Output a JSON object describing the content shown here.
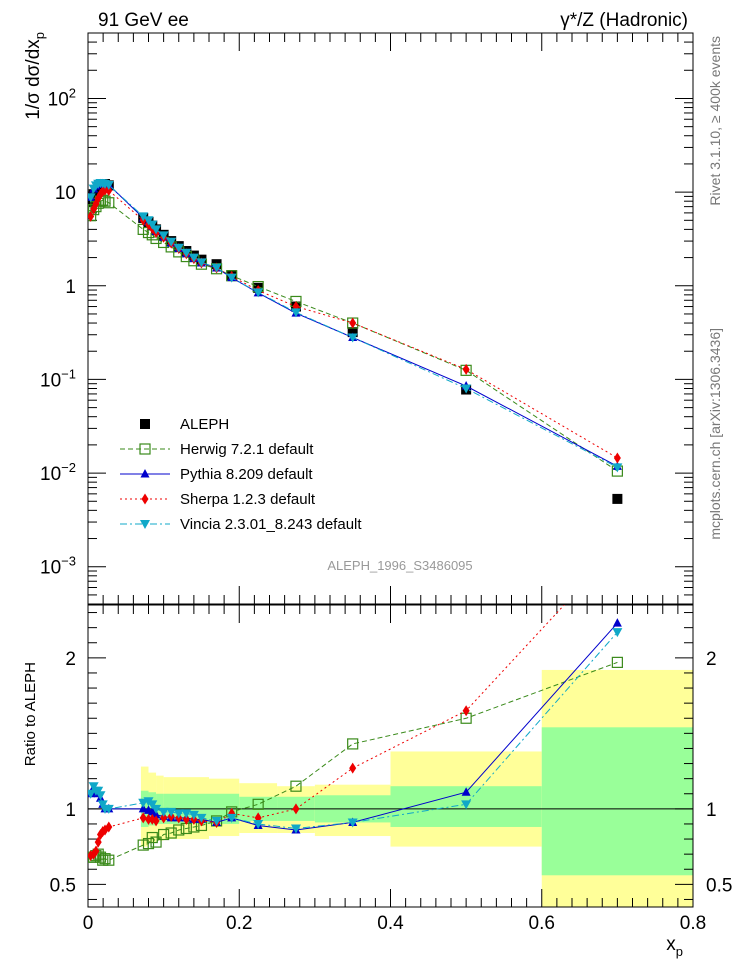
{
  "header": {
    "left": "91 GeV ee",
    "right": "γ*/Z (Hadronic)"
  },
  "side_labels": {
    "right_top": "Rivet 3.1.10, ≥ 400k events",
    "right_bottom": "mcplots.cern.ch [arXiv:1306.3436]"
  },
  "watermark": "ALEPH_1996_S3486095",
  "colors": {
    "data": "#000000",
    "herwig": "#3a8a1a",
    "pythia": "#0000cc",
    "sherpa": "#ee0000",
    "vincia": "#10a8c8",
    "band_outer": "#ffff99",
    "band_inner": "#99ff99"
  },
  "chart_data": [
    {
      "type": "scatter",
      "panel": "main",
      "ylabel": "1/σ dσ/dx",
      "ylabel_sub": "p",
      "yscale": "log",
      "xlim": [
        0,
        0.8
      ],
      "ylim": [
        0.0004,
        500
      ],
      "y_ticks": [
        {
          "v": 0.001,
          "b": "10",
          "e": "−3"
        },
        {
          "v": 0.01,
          "b": "10",
          "e": "−2"
        },
        {
          "v": 0.1,
          "b": "10",
          "e": "−1"
        },
        {
          "v": 1,
          "b": "1",
          "e": ""
        },
        {
          "v": 10,
          "b": "10",
          "e": ""
        },
        {
          "v": 100,
          "b": "10",
          "e": "2"
        }
      ],
      "legend": [
        {
          "key": "data",
          "label": "ALEPH"
        },
        {
          "key": "herwig",
          "label": "Herwig 7.2.1 default"
        },
        {
          "key": "pythia",
          "label": "Pythia 8.209 default"
        },
        {
          "key": "sherpa",
          "label": "Sherpa 1.2.3 default"
        },
        {
          "key": "vincia",
          "label": "Vincia 2.3.01_8.243 default"
        }
      ],
      "x": [
        0.0035,
        0.0075,
        0.0105,
        0.0135,
        0.0165,
        0.0195,
        0.0225,
        0.0275,
        0.073,
        0.08,
        0.085,
        0.09,
        0.1,
        0.11,
        0.12,
        0.13,
        0.14,
        0.15,
        0.17,
        0.19,
        0.225,
        0.275,
        0.35,
        0.5,
        0.7
      ],
      "series": [
        {
          "key": "data",
          "name": "ALEPH",
          "values": [
            8.0,
            9.5,
            10.5,
            11.0,
            11.5,
            12.0,
            12.2,
            11.8,
            5.3,
            4.8,
            4.4,
            4.0,
            3.5,
            3.0,
            2.65,
            2.35,
            2.1,
            1.9,
            1.7,
            1.3,
            0.95,
            0.6,
            0.32,
            0.078,
            0.0053
          ]
        },
        {
          "key": "herwig",
          "name": "Herwig 7.2.1 default",
          "values": [
            5.6,
            6.5,
            7.0,
            7.6,
            8.0,
            8.2,
            8.0,
            7.7,
            4.0,
            3.7,
            3.5,
            3.2,
            2.9,
            2.6,
            2.3,
            2.05,
            1.85,
            1.7,
            1.52,
            1.28,
            0.98,
            0.68,
            0.4,
            0.125,
            0.0105
          ]
        },
        {
          "key": "pythia",
          "name": "Pythia 8.209 default",
          "values": [
            8.8,
            10.8,
            11.6,
            12.1,
            12.3,
            12.3,
            12.2,
            11.9,
            5.3,
            4.8,
            4.3,
            3.8,
            3.3,
            2.85,
            2.5,
            2.2,
            1.95,
            1.75,
            1.55,
            1.22,
            0.84,
            0.51,
            0.28,
            0.085,
            0.0118
          ]
        },
        {
          "key": "sherpa",
          "name": "Sherpa 1.2.3 default",
          "values": [
            5.5,
            6.6,
            7.5,
            8.6,
            9.5,
            10.2,
            10.5,
            10.4,
            5.0,
            4.5,
            4.1,
            3.7,
            3.3,
            2.85,
            2.5,
            2.2,
            1.95,
            1.75,
            1.55,
            1.26,
            0.89,
            0.6,
            0.4,
            0.128,
            0.0145
          ]
        },
        {
          "key": "vincia",
          "name": "Vincia 2.3.01_8.243 default",
          "values": [
            8.8,
            10.9,
            11.8,
            12.3,
            12.5,
            12.4,
            12.2,
            11.9,
            5.5,
            5.0,
            4.5,
            4.0,
            3.45,
            2.95,
            2.55,
            2.25,
            2.0,
            1.78,
            1.56,
            1.22,
            0.85,
            0.52,
            0.28,
            0.08,
            0.0115
          ]
        }
      ]
    },
    {
      "type": "line",
      "panel": "ratio",
      "ylabel": "Ratio to ALEPH",
      "xlabel": "x",
      "xlabel_sub": "p",
      "xlim": [
        0,
        0.8
      ],
      "ylim": [
        0.35,
        2.35
      ],
      "x_ticks": [
        {
          "v": 0,
          "label": "0"
        },
        {
          "v": 0.2,
          "label": "0.2"
        },
        {
          "v": 0.4,
          "label": "0.4"
        },
        {
          "v": 0.6,
          "label": "0.6"
        },
        {
          "v": 0.8,
          "label": "0.8"
        }
      ],
      "y_ticks": [
        {
          "v": 0.5,
          "label": "0.5"
        },
        {
          "v": 1,
          "label": "1"
        },
        {
          "v": 2,
          "label": "2"
        }
      ],
      "bands": [
        {
          "x0": 0.07,
          "x1": 0.08,
          "outer": [
            0.75,
            1.28
          ],
          "inner": [
            0.88,
            1.12
          ]
        },
        {
          "x0": 0.08,
          "x1": 0.09,
          "outer": [
            0.78,
            1.24
          ],
          "inner": [
            0.89,
            1.11
          ]
        },
        {
          "x0": 0.09,
          "x1": 0.1,
          "outer": [
            0.79,
            1.22
          ],
          "inner": [
            0.9,
            1.1
          ]
        },
        {
          "x0": 0.1,
          "x1": 0.16,
          "outer": [
            0.8,
            1.21
          ],
          "inner": [
            0.9,
            1.1
          ]
        },
        {
          "x0": 0.16,
          "x1": 0.2,
          "outer": [
            0.82,
            1.2
          ],
          "inner": [
            0.9,
            1.1
          ]
        },
        {
          "x0": 0.2,
          "x1": 0.25,
          "outer": [
            0.84,
            1.17
          ],
          "inner": [
            0.92,
            1.08
          ]
        },
        {
          "x0": 0.25,
          "x1": 0.3,
          "outer": [
            0.84,
            1.15
          ],
          "inner": [
            0.92,
            1.08
          ]
        },
        {
          "x0": 0.3,
          "x1": 0.4,
          "outer": [
            0.82,
            1.16
          ],
          "inner": [
            0.91,
            1.09
          ]
        },
        {
          "x0": 0.4,
          "x1": 0.6,
          "outer": [
            0.75,
            1.38
          ],
          "inner": [
            0.88,
            1.15
          ]
        },
        {
          "x0": 0.6,
          "x1": 0.8,
          "outer": [
            0.35,
            1.92
          ],
          "inner": [
            0.56,
            1.54
          ]
        }
      ],
      "x": [
        0.0035,
        0.0075,
        0.0105,
        0.0135,
        0.0165,
        0.0195,
        0.0225,
        0.0275,
        0.073,
        0.08,
        0.085,
        0.09,
        0.1,
        0.11,
        0.12,
        0.13,
        0.14,
        0.15,
        0.17,
        0.19,
        0.225,
        0.275,
        0.35,
        0.5,
        0.7
      ],
      "series": [
        {
          "key": "herwig",
          "name": "Herwig 7.2.1 default",
          "values": [
            0.68,
            0.68,
            0.69,
            0.7,
            0.68,
            0.66,
            0.67,
            0.66,
            0.76,
            0.77,
            0.81,
            0.78,
            0.83,
            0.84,
            0.86,
            0.87,
            0.88,
            0.89,
            0.92,
            0.98,
            1.03,
            1.15,
            1.43,
            1.6,
            1.97
          ]
        },
        {
          "key": "pythia",
          "name": "Pythia 8.209 default",
          "values": [
            1.1,
            1.14,
            1.11,
            1.1,
            1.07,
            1.03,
            1.0,
            1.0,
            1.0,
            0.99,
            0.98,
            0.96,
            0.95,
            0.94,
            0.94,
            0.94,
            0.93,
            0.93,
            0.91,
            0.94,
            0.89,
            0.86,
            0.91,
            1.11,
            2.23
          ]
        },
        {
          "key": "sherpa",
          "name": "Sherpa 1.2.3 default",
          "values": [
            0.69,
            0.7,
            0.72,
            0.78,
            0.83,
            0.85,
            0.86,
            0.88,
            0.94,
            0.93,
            0.93,
            0.92,
            0.94,
            0.95,
            0.94,
            0.93,
            0.93,
            0.92,
            0.91,
            0.97,
            0.94,
            1.0,
            1.27,
            1.65,
            2.73
          ]
        },
        {
          "key": "vincia",
          "name": "Vincia 2.3.01_8.243 default",
          "values": [
            1.1,
            1.15,
            1.12,
            1.12,
            1.09,
            1.03,
            1.0,
            1.0,
            1.04,
            1.05,
            1.03,
            1.0,
            0.98,
            0.98,
            0.97,
            0.97,
            0.96,
            0.94,
            0.92,
            0.94,
            0.9,
            0.87,
            0.91,
            1.03,
            2.17
          ]
        }
      ]
    }
  ]
}
